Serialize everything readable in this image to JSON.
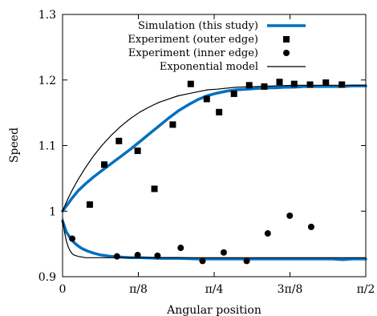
{
  "chart_data": {
    "type": "line",
    "xlabel": "Angular position",
    "ylabel": "Speed",
    "xlim": [
      0,
      1.5708
    ],
    "ylim": [
      0.9,
      1.3
    ],
    "xticks": [
      {
        "value": 0,
        "label": "0"
      },
      {
        "value": 0.3927,
        "label": "π/8"
      },
      {
        "value": 0.7854,
        "label": "π/4"
      },
      {
        "value": 1.1781,
        "label": "3π/8"
      },
      {
        "value": 1.5708,
        "label": "π/2"
      }
    ],
    "yticks": [
      {
        "value": 0.9,
        "label": "0.9"
      },
      {
        "value": 1.0,
        "label": "1"
      },
      {
        "value": 1.1,
        "label": "1.1"
      },
      {
        "value": 1.2,
        "label": "1.2"
      },
      {
        "value": 1.3,
        "label": "1.3"
      }
    ],
    "grid": false,
    "legend_position": "top-right",
    "legend": [
      {
        "label": "Simulation (this study)",
        "style": "thick-line",
        "color": "#0070c0"
      },
      {
        "label": "Experiment (outer edge)",
        "style": "square-marker",
        "color": "#000000"
      },
      {
        "label": "Experiment (inner edge)",
        "style": "circle-marker",
        "color": "#000000"
      },
      {
        "label": "Exponential model",
        "style": "thin-line",
        "color": "#000000"
      }
    ],
    "series": [
      {
        "name": "Simulation (this study)",
        "role": "upper",
        "color": "#0070c0",
        "x": [
          0,
          0.02,
          0.05,
          0.08,
          0.12,
          0.16,
          0.2,
          0.25,
          0.3,
          0.35,
          0.4,
          0.45,
          0.5,
          0.55,
          0.6,
          0.65,
          0.7,
          0.75,
          0.8,
          0.85,
          0.9,
          0.95,
          1.0,
          1.05,
          1.1,
          1.15,
          1.2,
          1.25,
          1.3,
          1.35,
          1.4,
          1.45,
          1.5,
          1.5708
        ],
        "y": [
          1.0,
          1.008,
          1.02,
          1.031,
          1.042,
          1.052,
          1.061,
          1.072,
          1.083,
          1.094,
          1.106,
          1.118,
          1.13,
          1.142,
          1.153,
          1.162,
          1.17,
          1.176,
          1.18,
          1.183,
          1.185,
          1.186,
          1.187,
          1.188,
          1.188,
          1.189,
          1.189,
          1.19,
          1.19,
          1.19,
          1.19,
          1.19,
          1.191,
          1.191
        ]
      },
      {
        "name": "Simulation (this study)",
        "role": "lower",
        "color": "#0070c0",
        "x": [
          0,
          0.02,
          0.04,
          0.06,
          0.08,
          0.1,
          0.13,
          0.16,
          0.2,
          0.25,
          0.3,
          0.35,
          0.4,
          0.5,
          0.6,
          0.7,
          0.8,
          0.9,
          1.0,
          1.1,
          1.2,
          1.3,
          1.4,
          1.45,
          1.5,
          1.5708
        ],
        "y": [
          0.985,
          0.968,
          0.959,
          0.952,
          0.947,
          0.943,
          0.939,
          0.936,
          0.933,
          0.931,
          0.93,
          0.929,
          0.929,
          0.928,
          0.928,
          0.927,
          0.927,
          0.927,
          0.927,
          0.927,
          0.927,
          0.927,
          0.927,
          0.926,
          0.927,
          0.927
        ]
      },
      {
        "name": "Experiment (outer edge)",
        "marker": "square",
        "color": "#000000",
        "x": [
          0.141,
          0.216,
          0.292,
          0.389,
          0.476,
          0.571,
          0.664,
          0.747,
          0.811,
          0.888,
          0.967,
          1.045,
          1.124,
          1.2,
          1.282,
          1.364,
          1.447
        ],
        "y": [
          1.01,
          1.071,
          1.107,
          1.092,
          1.034,
          1.132,
          1.194,
          1.171,
          1.151,
          1.179,
          1.192,
          1.19,
          1.197,
          1.194,
          1.193,
          1.196,
          1.193
        ]
      },
      {
        "name": "Experiment (inner edge)",
        "marker": "circle",
        "color": "#000000",
        "x": [
          0.05,
          0.282,
          0.389,
          0.492,
          0.612,
          0.725,
          0.835,
          0.954,
          1.063,
          1.177,
          1.288
        ],
        "y": [
          0.958,
          0.931,
          0.933,
          0.932,
          0.944,
          0.924,
          0.937,
          0.924,
          0.966,
          0.993,
          0.976
        ]
      },
      {
        "name": "Exponential model",
        "role": "upper",
        "color": "#000000",
        "x": [
          0,
          0.02,
          0.05,
          0.08,
          0.12,
          0.16,
          0.2,
          0.25,
          0.3,
          0.35,
          0.4,
          0.45,
          0.5,
          0.55,
          0.6,
          0.65,
          0.7,
          0.75,
          0.8,
          0.9,
          1.0,
          1.1,
          1.2,
          1.3,
          1.4,
          1.5,
          1.5708
        ],
        "y": [
          1.0,
          1.014,
          1.032,
          1.048,
          1.067,
          1.084,
          1.099,
          1.115,
          1.129,
          1.141,
          1.151,
          1.159,
          1.166,
          1.171,
          1.176,
          1.179,
          1.182,
          1.185,
          1.186,
          1.189,
          1.19,
          1.191,
          1.192,
          1.192,
          1.192,
          1.192,
          1.192
        ]
      },
      {
        "name": "Exponential model",
        "role": "lower",
        "color": "#000000",
        "x": [
          0,
          0.01,
          0.02,
          0.03,
          0.04,
          0.05,
          0.06,
          0.07,
          0.08,
          0.1,
          0.12,
          0.15,
          0.2,
          0.3,
          0.5,
          0.8,
          1.2,
          1.5708
        ],
        "y": [
          0.99,
          0.968,
          0.954,
          0.945,
          0.939,
          0.935,
          0.933,
          0.932,
          0.931,
          0.93,
          0.929,
          0.929,
          0.929,
          0.929,
          0.929,
          0.929,
          0.929,
          0.929
        ]
      }
    ]
  }
}
